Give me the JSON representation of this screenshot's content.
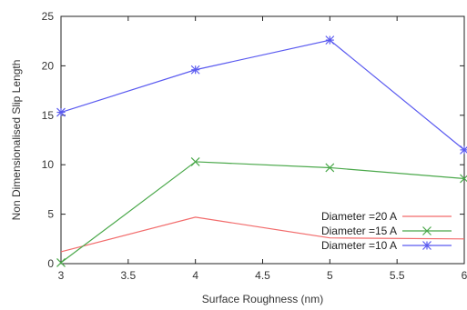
{
  "chart_data": {
    "type": "line",
    "title": "",
    "xlabel": "Surface Roughness (nm)",
    "ylabel": "Non Dimensionalised Slip Length",
    "xlim": [
      3,
      6
    ],
    "ylim": [
      0,
      25
    ],
    "xticks": [
      "3",
      "3.5",
      "4",
      "4.5",
      "5",
      "5.5",
      "6"
    ],
    "yticks": [
      "0",
      "5",
      "10",
      "15",
      "20",
      "25"
    ],
    "grid": false,
    "legend_position": "bottom-right",
    "series": [
      {
        "name": "Diameter =20 A",
        "color": "#f26b6b",
        "marker": "none",
        "x": [
          3,
          4,
          5,
          6
        ],
        "y": [
          1.2,
          4.7,
          2.6,
          2.5
        ]
      },
      {
        "name": "Diameter =15 A",
        "color": "#4aa84a",
        "marker": "x",
        "x": [
          3,
          4,
          5,
          6
        ],
        "y": [
          0.1,
          10.3,
          9.7,
          8.6
        ]
      },
      {
        "name": "Diameter =10 A",
        "color": "#5a5af0",
        "marker": "star",
        "x": [
          3,
          4,
          5,
          6
        ],
        "y": [
          15.3,
          19.6,
          22.6,
          11.5
        ]
      }
    ]
  }
}
